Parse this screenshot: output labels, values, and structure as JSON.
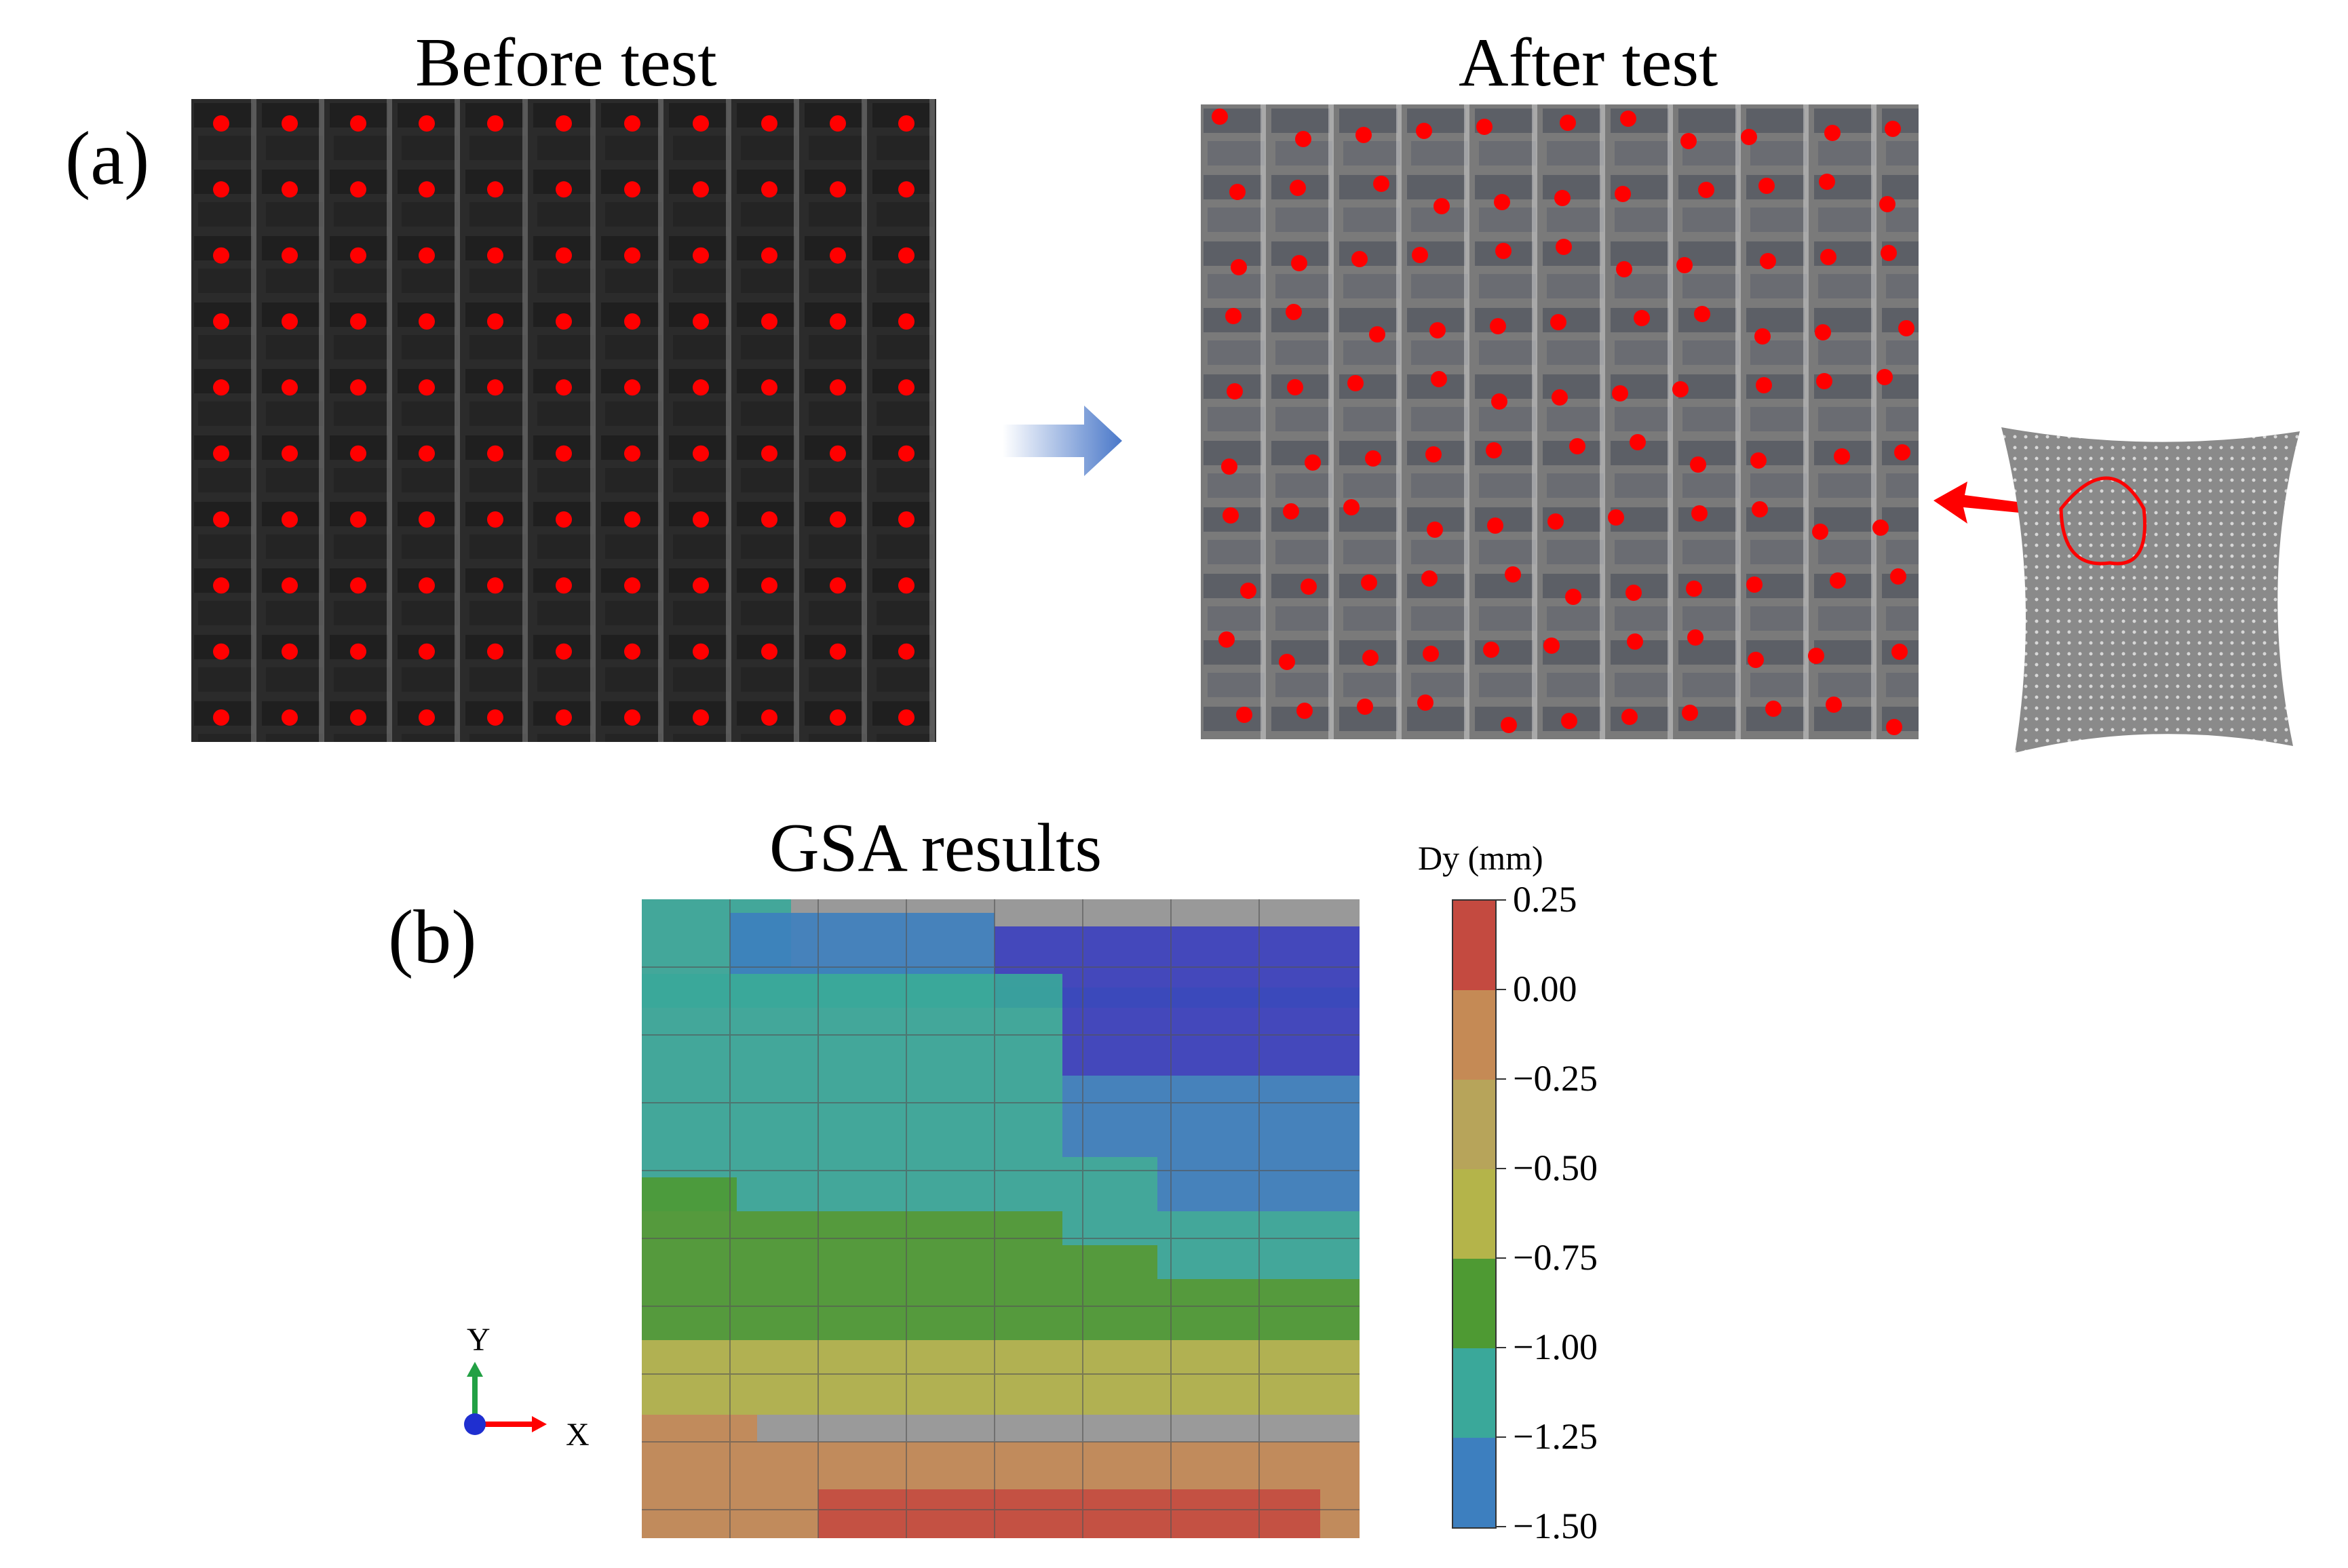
{
  "panel_a": {
    "label": "(a)",
    "before_title": "Before test",
    "after_title": "After test",
    "marker_color": "#ff0000"
  },
  "panel_b": {
    "label": "(b)",
    "title": "GSA results",
    "colorbar": {
      "title": "Dy (mm)",
      "ticks": [
        "0.25",
        "0.00",
        "−0.25",
        "−0.50",
        "−0.75",
        "−1.00",
        "−1.25",
        "−1.50"
      ],
      "colors": [
        "#c44a40",
        "#c58a55",
        "#b7a45a",
        "#b4b44a",
        "#4e9a33",
        "#3aa89a",
        "#3d7fbf",
        "#3b3fbf"
      ]
    },
    "axes": {
      "y_label": "Y",
      "x_label": "X"
    }
  }
}
